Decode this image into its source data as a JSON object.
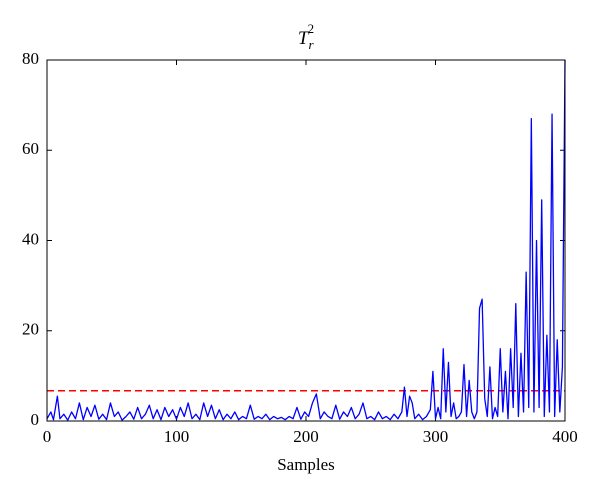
{
  "chart_data": {
    "type": "line",
    "title": {
      "base": "T",
      "sub": "r",
      "sup": "2"
    },
    "xlabel": "Samples",
    "x": [
      0,
      3,
      5,
      8,
      10,
      13,
      16,
      19,
      22,
      25,
      28,
      31,
      34,
      37,
      40,
      43,
      46,
      49,
      52,
      55,
      58,
      61,
      64,
      67,
      70,
      73,
      76,
      79,
      82,
      85,
      88,
      91,
      94,
      97,
      100,
      103,
      106,
      109,
      112,
      115,
      118,
      121,
      124,
      127,
      130,
      133,
      136,
      139,
      142,
      145,
      148,
      151,
      154,
      157,
      160,
      163,
      166,
      169,
      172,
      175,
      178,
      181,
      184,
      187,
      190,
      193,
      196,
      199,
      202,
      205,
      208,
      211,
      214,
      217,
      220,
      223,
      226,
      229,
      232,
      235,
      238,
      241,
      244,
      247,
      250,
      253,
      256,
      259,
      262,
      265,
      268,
      271,
      274,
      276,
      278,
      280,
      282,
      284,
      287,
      290,
      293,
      296,
      298,
      300,
      302,
      304,
      306,
      308,
      310,
      312,
      314,
      316,
      318,
      320,
      322,
      324,
      326,
      328,
      330,
      332,
      334,
      336,
      338,
      340,
      342,
      344,
      346,
      348,
      350,
      352,
      354,
      356,
      358,
      360,
      362,
      364,
      366,
      368,
      370,
      372,
      374,
      376,
      378,
      380,
      382,
      384,
      386,
      388,
      390,
      392,
      394,
      396,
      398,
      400
    ],
    "series": [
      {
        "color": "#0000ff",
        "values": [
          0.5,
          2,
          0.3,
          5.5,
          0.5,
          1.5,
          0.2,
          2,
          0.5,
          4,
          0.3,
          3,
          1,
          3.5,
          0.4,
          1.5,
          0.3,
          4,
          1,
          2,
          0.2,
          1,
          2,
          0.4,
          3,
          0.5,
          1.5,
          3.5,
          0.5,
          2.5,
          0.3,
          3,
          1,
          2.5,
          0.4,
          3,
          1,
          4,
          0.5,
          1.5,
          0.3,
          4,
          1,
          3.5,
          0.5,
          2.5,
          0.3,
          1.5,
          0.5,
          2,
          0.3,
          1,
          0.5,
          3.5,
          0.4,
          1,
          0.5,
          1.5,
          0.3,
          1,
          0.5,
          0.8,
          0.3,
          1,
          0.5,
          3,
          0.4,
          2,
          1,
          4,
          6,
          0.5,
          2,
          1,
          0.5,
          3.5,
          0.4,
          2,
          1,
          3,
          0.5,
          1.5,
          4,
          0.5,
          1,
          0.3,
          2,
          0.5,
          1,
          0.3,
          1.5,
          0.5,
          2,
          7.5,
          1,
          5.5,
          4,
          0.5,
          1.5,
          0.3,
          1,
          2.5,
          11,
          0.5,
          3,
          0.5,
          16,
          2,
          13,
          1,
          4,
          0.5,
          1,
          2,
          12.5,
          1,
          9,
          2,
          0.5,
          2,
          25,
          27,
          5,
          1,
          12,
          0.5,
          3,
          1,
          16,
          2,
          11,
          0.5,
          16,
          3,
          26,
          1,
          15,
          2,
          33,
          3,
          67,
          2,
          40,
          3,
          49,
          1,
          19,
          2,
          68,
          1,
          18,
          2,
          12,
          80
        ]
      }
    ],
    "threshold": {
      "value": 6.7,
      "color": "#ff0000"
    },
    "xlim": [
      0,
      400
    ],
    "xticks": [
      0,
      100,
      200,
      300,
      400
    ],
    "ylim": [
      0,
      80
    ],
    "yticks": [
      0,
      20,
      40,
      60,
      80
    ]
  }
}
